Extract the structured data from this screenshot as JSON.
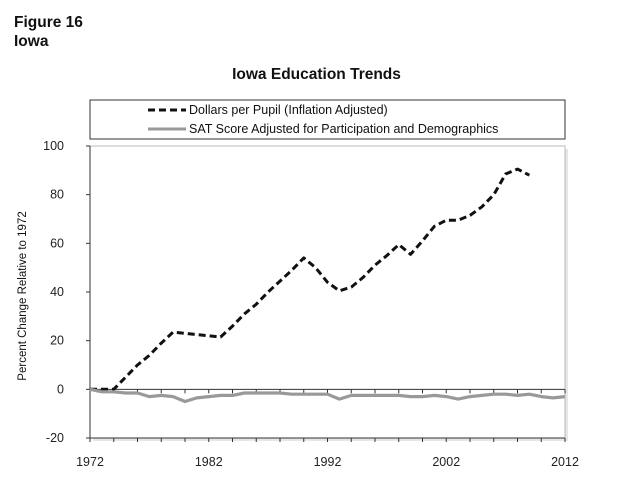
{
  "figure": {
    "number": "Figure 16",
    "state": "Iowa"
  },
  "chart_data": {
    "type": "line",
    "title": "Iowa Education Trends",
    "xlabel": "",
    "ylabel": "Percent Change Relative to 1972",
    "xlim": [
      1972,
      2012
    ],
    "ylim": [
      -20,
      100
    ],
    "x_ticks": [
      1972,
      1982,
      1992,
      2002,
      2012
    ],
    "y_ticks": [
      100,
      80,
      60,
      40,
      20,
      0,
      -20
    ],
    "legend_position": "top",
    "series": [
      {
        "name": "Dollars per Pupil (Inflation Adjusted)",
        "style": "dashed",
        "color": "#111111",
        "x": [
          1972,
          1973,
          1974,
          1975,
          1976,
          1977,
          1978,
          1979,
          1980,
          1981,
          1982,
          1983,
          1984,
          1985,
          1986,
          1987,
          1988,
          1989,
          1990,
          1991,
          1992,
          1993,
          1994,
          1995,
          1996,
          1997,
          1998,
          1999,
          2000,
          2001,
          2002,
          2003,
          2004,
          2005,
          2006,
          2007,
          2008,
          2009
        ],
        "values": [
          0,
          0,
          0,
          5,
          10,
          14,
          19,
          23.5,
          23,
          22.5,
          22,
          21.5,
          26,
          31,
          35,
          40,
          44.5,
          49,
          54,
          50,
          44,
          40.5,
          42,
          46,
          51,
          55,
          59.5,
          55.5,
          61,
          67,
          69.5,
          69.5,
          71.5,
          75,
          80,
          88.5,
          90.5,
          88
        ]
      },
      {
        "name": "SAT Score Adjusted for Participation and Demographics",
        "style": "solid",
        "color": "#999999",
        "x": [
          1972,
          1973,
          1974,
          1975,
          1976,
          1977,
          1978,
          1979,
          1980,
          1981,
          1982,
          1983,
          1984,
          1985,
          1986,
          1987,
          1988,
          1989,
          1990,
          1991,
          1992,
          1993,
          1994,
          1995,
          1996,
          1997,
          1998,
          1999,
          2000,
          2001,
          2002,
          2003,
          2004,
          2005,
          2006,
          2007,
          2008,
          2009,
          2010,
          2011,
          2012
        ],
        "values": [
          0,
          -1,
          -1,
          -1.5,
          -1.5,
          -3,
          -2.5,
          -3,
          -5,
          -3.5,
          -3,
          -2.5,
          -2.5,
          -1.5,
          -1.5,
          -1.5,
          -1.5,
          -2,
          -2,
          -2,
          -2,
          -4,
          -2.5,
          -2.5,
          -2.5,
          -2.5,
          -2.5,
          -3,
          -3,
          -2.5,
          -3,
          -4,
          -3,
          -2.5,
          -2,
          -2,
          -2.5,
          -2,
          -3,
          -3.5,
          -3
        ]
      }
    ]
  }
}
